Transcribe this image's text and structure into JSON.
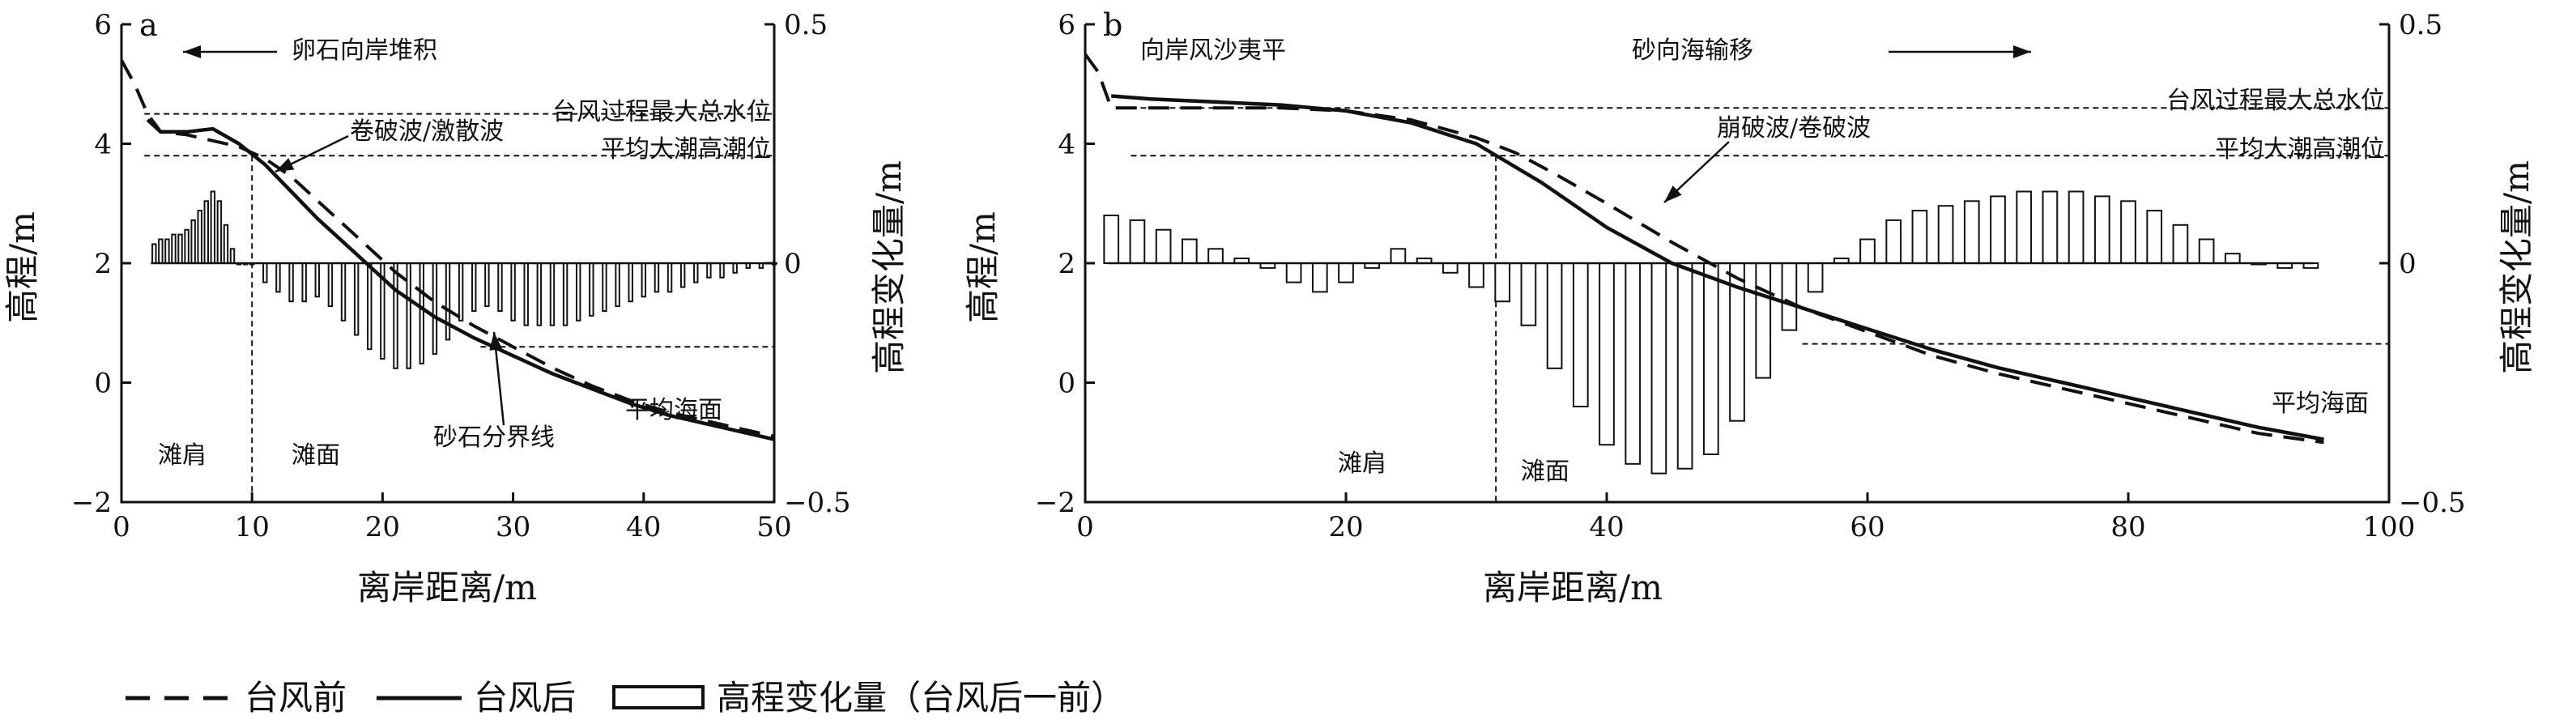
{
  "chart_data": [
    {
      "panel": "a",
      "type": "line",
      "xlabel": "离岸距离/m",
      "ylabel_left": "高程/m",
      "ylabel_right": "高程变化量/m",
      "xlim": [
        0,
        50
      ],
      "ylim_left": [
        -2,
        6
      ],
      "ylim_right": [
        -0.5,
        0.5
      ],
      "x_ticks": [
        "0",
        "10",
        "20",
        "30",
        "40",
        "50"
      ],
      "y_left_ticks": [
        "−2",
        "0",
        "2",
        "4",
        "6"
      ],
      "y_right_ticks": [
        "−0.5",
        "0",
        "0.5"
      ],
      "hlines": [
        {
          "label": "台风过程最大总水位",
          "y": 4.5
        },
        {
          "label": "平均大潮高潮位",
          "y": 3.8
        },
        {
          "label": "平均海面",
          "y": 0.6
        }
      ],
      "vlines": [
        {
          "x": 10
        }
      ],
      "annotations": {
        "arrow_text": "卵石向岸堆积",
        "breaker": "卷破波/激散波",
        "boundary": "砂石分界线",
        "zone_left": "滩肩",
        "zone_right": "滩面"
      },
      "series": [
        {
          "name": "台风前",
          "style": "dashed",
          "x": [
            0,
            1,
            2,
            3,
            5,
            7,
            9,
            11,
            13,
            15,
            18,
            21,
            24,
            27,
            30,
            33,
            36,
            39,
            42,
            45,
            48,
            50
          ],
          "y": [
            5.4,
            5.0,
            4.5,
            4.2,
            4.15,
            4.05,
            3.95,
            3.75,
            3.45,
            3.05,
            2.45,
            1.85,
            1.35,
            0.95,
            0.6,
            0.25,
            -0.05,
            -0.3,
            -0.5,
            -0.65,
            -0.8,
            -0.9
          ]
        },
        {
          "name": "台风后",
          "style": "solid",
          "x": [
            2,
            3,
            5,
            7,
            9,
            11,
            13,
            15,
            18,
            21,
            24,
            27,
            30,
            33,
            36,
            39,
            42,
            45,
            48,
            50
          ],
          "y": [
            4.4,
            4.2,
            4.2,
            4.25,
            4.0,
            3.65,
            3.2,
            2.75,
            2.15,
            1.55,
            1.1,
            0.75,
            0.45,
            0.15,
            -0.1,
            -0.35,
            -0.55,
            -0.7,
            -0.85,
            -0.95
          ]
        },
        {
          "name": "高程变化量（台风后一前）",
          "style": "bars",
          "x": [
            2.5,
            3,
            3.5,
            4,
            4.5,
            5,
            5.5,
            6,
            6.5,
            7,
            7.5,
            8,
            8.5,
            9,
            9.5,
            10,
            11,
            12,
            13,
            14,
            15,
            16,
            17,
            18,
            19,
            20,
            21,
            22,
            23,
            24,
            25,
            26,
            27,
            28,
            29,
            30,
            31,
            32,
            33,
            34,
            35,
            36,
            37,
            38,
            39,
            40,
            41,
            42,
            43,
            44,
            45,
            46,
            47,
            48,
            49,
            50
          ],
          "y": [
            0.04,
            0.05,
            0.05,
            0.06,
            0.06,
            0.07,
            0.09,
            0.11,
            0.13,
            0.15,
            0.13,
            0.08,
            0.03,
            0,
            0,
            0,
            -0.04,
            -0.06,
            -0.08,
            -0.08,
            -0.07,
            -0.09,
            -0.12,
            -0.15,
            -0.18,
            -0.2,
            -0.22,
            -0.22,
            -0.21,
            -0.19,
            -0.16,
            -0.12,
            -0.1,
            -0.09,
            -0.1,
            -0.12,
            -0.13,
            -0.13,
            -0.13,
            -0.13,
            -0.12,
            -0.11,
            -0.1,
            -0.09,
            -0.08,
            -0.07,
            -0.06,
            -0.06,
            -0.05,
            -0.04,
            -0.03,
            -0.03,
            -0.02,
            -0.01,
            -0.01,
            0
          ]
        }
      ]
    },
    {
      "panel": "b",
      "type": "line",
      "xlabel": "离岸距离/m",
      "ylabel_left": "高程/m",
      "ylabel_right": "高程变化量/m",
      "xlim": [
        0,
        100
      ],
      "ylim_left": [
        -2,
        6
      ],
      "ylim_right": [
        -0.5,
        0.5
      ],
      "x_ticks": [
        "0",
        "20",
        "40",
        "60",
        "80",
        "100"
      ],
      "y_left_ticks": [
        "−2",
        "0",
        "2",
        "4",
        "6"
      ],
      "y_right_ticks": [
        "−0.5",
        "0",
        "0.5"
      ],
      "hlines": [
        {
          "label": "台风过程最大总水位",
          "y": 4.6
        },
        {
          "label": "平均大潮高潮位",
          "y": 3.8
        },
        {
          "label": "平均海面",
          "y": 0.65
        }
      ],
      "vlines": [
        {
          "x": 31.5
        }
      ],
      "annotations": {
        "title_left": "向岸风沙夷平",
        "arrow_text": "砂向海输移",
        "breaker": "崩破波/卷破波",
        "zone_left": "滩肩",
        "zone_right": "滩面"
      },
      "series": [
        {
          "name": "台风前",
          "style": "dashed",
          "x": [
            0,
            1,
            2,
            5,
            10,
            15,
            20,
            25,
            30,
            33,
            36,
            40,
            45,
            50,
            55,
            60,
            65,
            70,
            75,
            80,
            85,
            90,
            95
          ],
          "y": [
            5.5,
            5.2,
            4.6,
            4.6,
            4.6,
            4.6,
            4.55,
            4.4,
            4.1,
            3.85,
            3.5,
            3.0,
            2.35,
            1.75,
            1.25,
            0.85,
            0.45,
            0.15,
            -0.1,
            -0.35,
            -0.6,
            -0.85,
            -1.0
          ]
        },
        {
          "name": "台风后",
          "style": "solid",
          "x": [
            2,
            5,
            10,
            15,
            20,
            25,
            30,
            35,
            40,
            45,
            50,
            55,
            60,
            65,
            70,
            75,
            80,
            85,
            90,
            95
          ],
          "y": [
            4.8,
            4.75,
            4.7,
            4.65,
            4.55,
            4.35,
            4.0,
            3.35,
            2.6,
            2.0,
            1.6,
            1.25,
            0.9,
            0.55,
            0.25,
            0.0,
            -0.25,
            -0.5,
            -0.75,
            -0.95
          ]
        },
        {
          "name": "高程变化量（台风后一前）",
          "style": "bars",
          "x": [
            2,
            4,
            6,
            8,
            10,
            12,
            14,
            16,
            18,
            20,
            22,
            24,
            26,
            28,
            30,
            32,
            34,
            36,
            38,
            40,
            42,
            44,
            46,
            48,
            50,
            52,
            54,
            56,
            58,
            60,
            62,
            64,
            66,
            68,
            70,
            72,
            74,
            76,
            78,
            80,
            82,
            84,
            86,
            88,
            90,
            92,
            94
          ],
          "y": [
            0.1,
            0.09,
            0.07,
            0.05,
            0.03,
            0.01,
            -0.01,
            -0.04,
            -0.06,
            -0.04,
            -0.01,
            0.03,
            0.01,
            -0.02,
            -0.05,
            -0.08,
            -0.13,
            -0.22,
            -0.3,
            -0.38,
            -0.42,
            -0.44,
            -0.43,
            -0.4,
            -0.33,
            -0.24,
            -0.14,
            -0.06,
            0.01,
            0.05,
            0.09,
            0.11,
            0.12,
            0.13,
            0.14,
            0.15,
            0.15,
            0.15,
            0.14,
            0.13,
            0.11,
            0.08,
            0.05,
            0.02,
            0.0,
            -0.01,
            -0.01
          ]
        }
      ]
    }
  ],
  "legend": {
    "before": "台风前",
    "after": "台风后",
    "change": "高程变化量（台风后一前）"
  }
}
